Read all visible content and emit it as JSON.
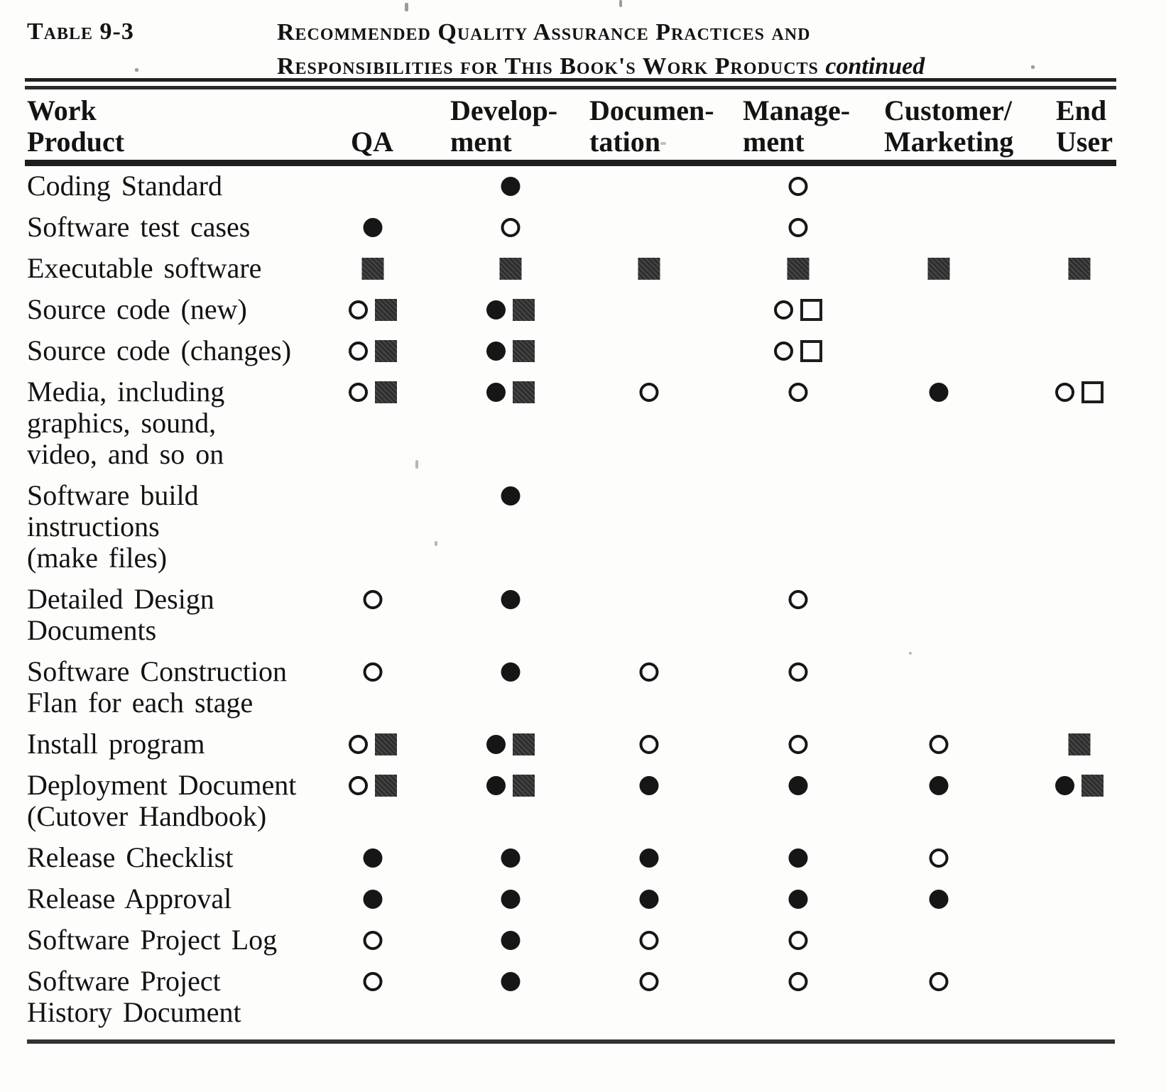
{
  "header": {
    "table_label": "Table 9-3",
    "title_line1": "Recommended Quality Assurance Practices and",
    "title_line2": "Responsibilities for This Book's Work Products",
    "continued": "continued"
  },
  "columns": [
    {
      "id": "work_product",
      "lines": [
        "Work",
        "Product"
      ]
    },
    {
      "id": "qa",
      "lines": [
        "QA"
      ]
    },
    {
      "id": "development",
      "lines": [
        "Develop-",
        "ment"
      ]
    },
    {
      "id": "documentation",
      "lines": [
        "Documen-",
        "tation"
      ]
    },
    {
      "id": "management",
      "lines": [
        "Manage-",
        "ment"
      ]
    },
    {
      "id": "customer_marketing",
      "lines": [
        "Customer/",
        "Marketing"
      ]
    },
    {
      "id": "end_user",
      "lines": [
        "End",
        "User"
      ]
    }
  ],
  "marker_glyphs": {
    "filled-circle": "●",
    "open-circle": "○",
    "filled-square": "■",
    "open-square": "□"
  },
  "marker_colors": {
    "ink": "#161616",
    "square_fill": "#3a3a3a"
  },
  "rows": [
    {
      "product_lines": [
        "Coding Standard"
      ],
      "cells": {
        "development": [
          "filled-circle"
        ],
        "management": [
          "open-circle"
        ]
      }
    },
    {
      "product_lines": [
        "Software test cases"
      ],
      "cells": {
        "qa": [
          "filled-circle"
        ],
        "development": [
          "open-circle"
        ],
        "management": [
          "open-circle"
        ]
      }
    },
    {
      "product_lines": [
        "Executable software"
      ],
      "cells": {
        "qa": [
          "filled-square"
        ],
        "development": [
          "filled-square"
        ],
        "documentation": [
          "filled-square"
        ],
        "management": [
          "filled-square"
        ],
        "customer_marketing": [
          "filled-square"
        ],
        "end_user": [
          "filled-square"
        ]
      }
    },
    {
      "product_lines": [
        "Source code (new)"
      ],
      "cells": {
        "qa": [
          "open-circle",
          "filled-square"
        ],
        "development": [
          "filled-circle",
          "filled-square"
        ],
        "management": [
          "open-circle",
          "open-square"
        ]
      }
    },
    {
      "product_lines": [
        "Source code (changes)"
      ],
      "cells": {
        "qa": [
          "open-circle",
          "filled-square"
        ],
        "development": [
          "filled-circle",
          "filled-square"
        ],
        "management": [
          "open-circle",
          "open-square"
        ]
      }
    },
    {
      "product_lines": [
        "Media, including",
        "graphics, sound,",
        "video, and so on"
      ],
      "cells": {
        "qa": [
          "open-circle",
          "filled-square"
        ],
        "development": [
          "filled-circle",
          "filled-square"
        ],
        "documentation": [
          "open-circle"
        ],
        "management": [
          "open-circle"
        ],
        "customer_marketing": [
          "filled-circle"
        ],
        "end_user": [
          "open-circle",
          "open-square"
        ]
      }
    },
    {
      "product_lines": [
        "Software build",
        "instructions",
        "(make files)"
      ],
      "cells": {
        "development": [
          "filled-circle"
        ]
      }
    },
    {
      "product_lines": [
        "Detailed Design",
        "Documents"
      ],
      "cells": {
        "qa": [
          "open-circle"
        ],
        "development": [
          "filled-circle"
        ],
        "management": [
          "open-circle"
        ]
      }
    },
    {
      "product_lines": [
        "Software Construction",
        "Flan for each stage"
      ],
      "cells": {
        "qa": [
          "open-circle"
        ],
        "development": [
          "filled-circle"
        ],
        "documentation": [
          "open-circle"
        ],
        "management": [
          "open-circle"
        ]
      }
    },
    {
      "product_lines": [
        "Install program"
      ],
      "cells": {
        "qa": [
          "open-circle",
          "filled-square"
        ],
        "development": [
          "filled-circle",
          "filled-square"
        ],
        "documentation": [
          "open-circle"
        ],
        "management": [
          "open-circle"
        ],
        "customer_marketing": [
          "open-circle"
        ],
        "end_user": [
          "filled-square"
        ]
      }
    },
    {
      "product_lines": [
        "Deployment Document",
        "(Cutover Handbook)"
      ],
      "cells": {
        "qa": [
          "open-circle",
          "filled-square"
        ],
        "development": [
          "filled-circle",
          "filled-square"
        ],
        "documentation": [
          "filled-circle"
        ],
        "management": [
          "filled-circle"
        ],
        "customer_marketing": [
          "filled-circle"
        ],
        "end_user": [
          "filled-circle",
          "filled-square"
        ]
      }
    },
    {
      "product_lines": [
        "Release Checklist"
      ],
      "cells": {
        "qa": [
          "filled-circle"
        ],
        "development": [
          "filled-circle"
        ],
        "documentation": [
          "filled-circle"
        ],
        "management": [
          "filled-circle"
        ],
        "customer_marketing": [
          "open-circle"
        ]
      }
    },
    {
      "product_lines": [
        "Release Approval"
      ],
      "cells": {
        "qa": [
          "filled-circle"
        ],
        "development": [
          "filled-circle"
        ],
        "documentation": [
          "filled-circle"
        ],
        "management": [
          "filled-circle"
        ],
        "customer_marketing": [
          "filled-circle"
        ]
      }
    },
    {
      "product_lines": [
        "Software Project Log"
      ],
      "cells": {
        "qa": [
          "open-circle"
        ],
        "development": [
          "filled-circle"
        ],
        "documentation": [
          "open-circle"
        ],
        "management": [
          "open-circle"
        ]
      }
    },
    {
      "product_lines": [
        "Software Project",
        "History Document"
      ],
      "cells": {
        "qa": [
          "open-circle"
        ],
        "development": [
          "filled-circle"
        ],
        "documentation": [
          "open-circle"
        ],
        "management": [
          "open-circle"
        ],
        "customer_marketing": [
          "open-circle"
        ]
      }
    }
  ]
}
